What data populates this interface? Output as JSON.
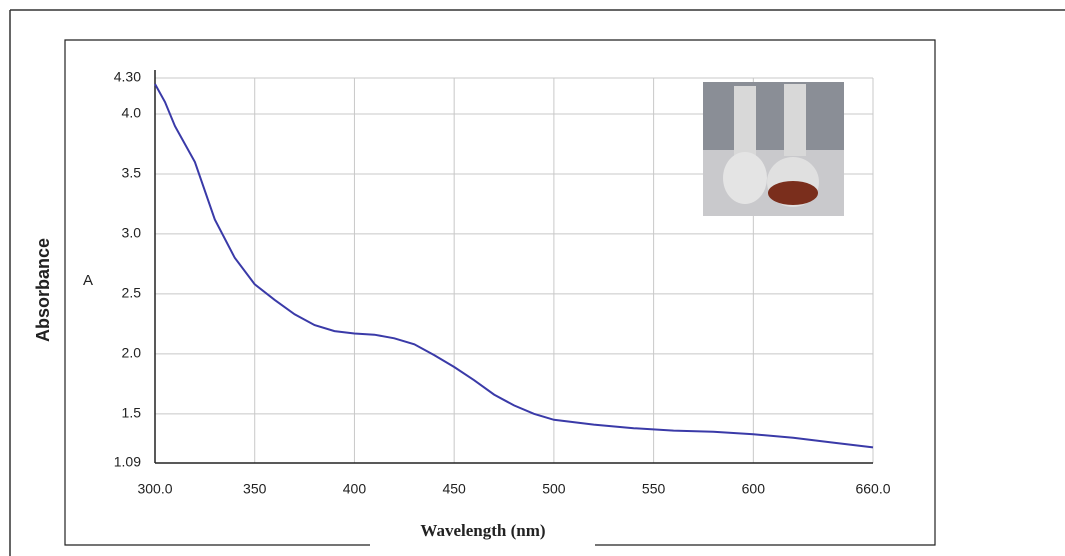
{
  "chart_data": {
    "type": "line",
    "x_label": "Wavelength (nm)",
    "y_label": "Absorbance",
    "y_unit_label": "A",
    "x": [
      300,
      305,
      310,
      320,
      330,
      340,
      350,
      360,
      370,
      380,
      390,
      400,
      410,
      420,
      430,
      440,
      450,
      460,
      470,
      480,
      490,
      500,
      520,
      540,
      560,
      580,
      600,
      620,
      640,
      660
    ],
    "values": [
      4.25,
      4.1,
      3.9,
      3.6,
      3.12,
      2.8,
      2.58,
      2.45,
      2.33,
      2.24,
      2.19,
      2.17,
      2.16,
      2.13,
      2.08,
      1.99,
      1.89,
      1.78,
      1.66,
      1.57,
      1.5,
      1.45,
      1.41,
      1.38,
      1.36,
      1.35,
      1.33,
      1.3,
      1.26,
      1.22
    ],
    "color": "#3a3aa8",
    "xlim": [
      300,
      660
    ],
    "xticks": [
      {
        "value": 300,
        "label": "300.0"
      },
      350,
      400,
      450,
      500,
      550,
      600,
      {
        "value": 660,
        "label": "660.0"
      }
    ],
    "ylim": [
      1.09,
      4.3
    ],
    "yticks": [
      {
        "value": 1.09,
        "label": "1.09"
      },
      1.5,
      {
        "value": 2,
        "label": "2.0"
      },
      2.5,
      {
        "value": 3,
        "label": "3.0"
      },
      3.5,
      {
        "value": 4,
        "label": "4.0"
      },
      {
        "value": 4.3,
        "label": "4.30"
      }
    ],
    "grid": true
  }
}
